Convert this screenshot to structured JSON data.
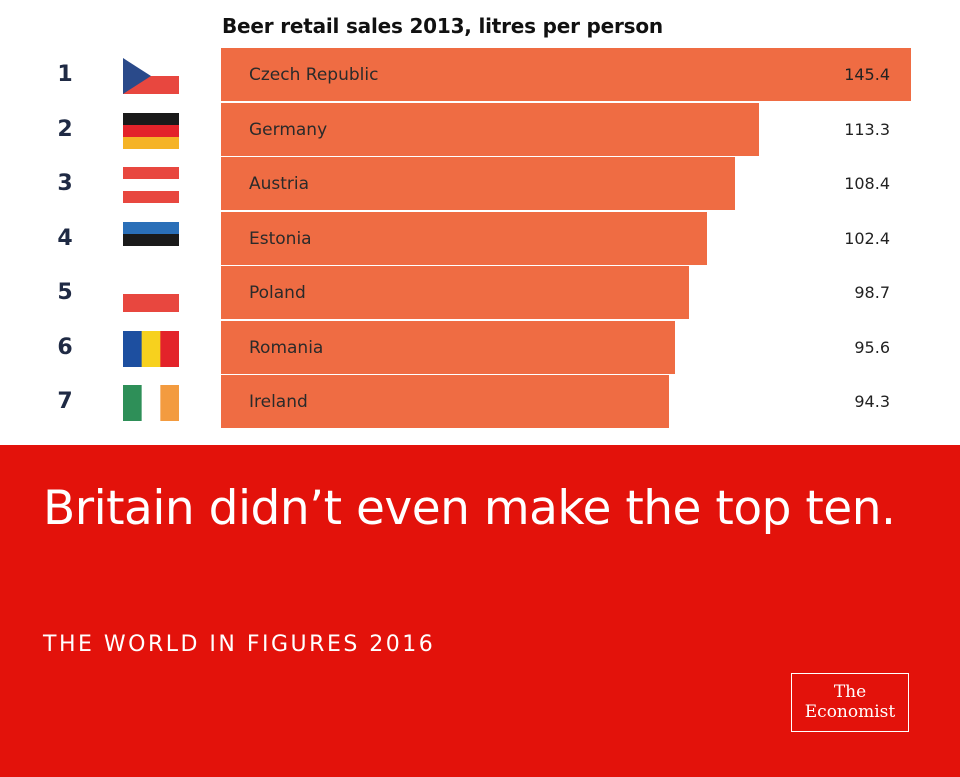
{
  "chart_data": {
    "type": "bar",
    "orientation": "horizontal",
    "title": "Beer retail sales 2013, litres per person",
    "ranks": [
      "1",
      "2",
      "3",
      "4",
      "5",
      "6",
      "7"
    ],
    "categories": [
      "Czech Republic",
      "Germany",
      "Austria",
      "Estonia",
      "Poland",
      "Romania",
      "Ireland"
    ],
    "values": [
      145.4,
      113.3,
      108.4,
      102.4,
      98.7,
      95.6,
      94.3
    ],
    "value_labels": [
      "145.4",
      "113.3",
      "108.4",
      "102.4",
      "98.7",
      "95.6",
      "94.3"
    ],
    "xlim": [
      0,
      145.4
    ],
    "grid": false,
    "bar_color": "#ef6c43"
  },
  "flags": [
    {
      "icon": "czech-flag-icon",
      "type": "czech",
      "colors": [
        "#ffffff",
        "#e8473f",
        "#2a4a8a"
      ]
    },
    {
      "icon": "germany-flag-icon",
      "type": "h",
      "colors": [
        "#1a1a1a",
        "#e3232a",
        "#f5b326"
      ]
    },
    {
      "icon": "austria-flag-icon",
      "type": "h",
      "colors": [
        "#e8473f",
        "#ffffff",
        "#e8473f"
      ]
    },
    {
      "icon": "estonia-flag-icon",
      "type": "h",
      "colors": [
        "#2a6fb8",
        "#1a1a1a",
        "#ffffff"
      ]
    },
    {
      "icon": "poland-flag-icon",
      "type": "h",
      "colors": [
        "#ffffff",
        "#e8473f"
      ]
    },
    {
      "icon": "romania-flag-icon",
      "type": "v",
      "colors": [
        "#1d4fa0",
        "#f7d11e",
        "#e3232a"
      ]
    },
    {
      "icon": "ireland-flag-icon",
      "type": "v",
      "colors": [
        "#2e8f58",
        "#ffffff",
        "#f39b3f"
      ]
    }
  ],
  "banner": {
    "headline": "Britain didn’t even make the top ten.",
    "footer": "THE WORLD IN FIGURES 2016",
    "logo_line1": "The",
    "logo_line2": "Economist",
    "background": "#e3120b"
  }
}
